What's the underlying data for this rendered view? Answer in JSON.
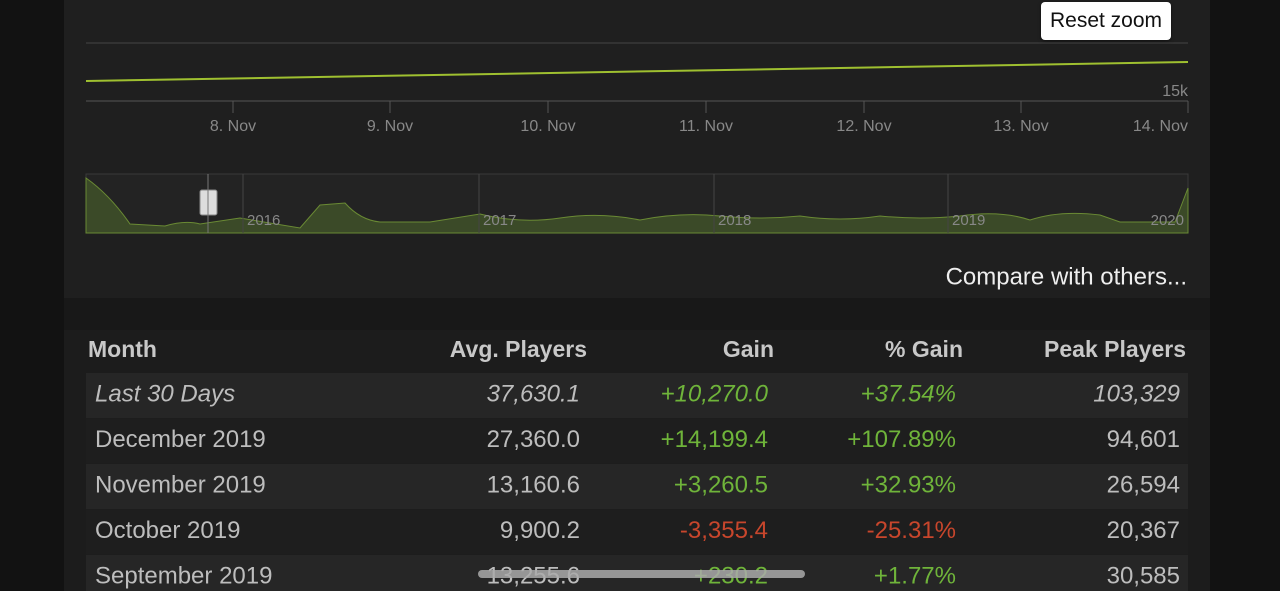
{
  "reset_button": "Reset zoom",
  "chart": {
    "y_labels": [
      "15k"
    ],
    "x_labels": [
      "8. Nov",
      "9. Nov",
      "10. Nov",
      "11. Nov",
      "12. Nov",
      "13. Nov",
      "14. Nov"
    ],
    "navigator_labels": [
      "2016",
      "2017",
      "2018",
      "2019",
      "2020"
    ]
  },
  "compare_link": "Compare with others...",
  "table": {
    "headers": [
      "Month",
      "Avg. Players",
      "Gain",
      "% Gain",
      "Peak Players"
    ],
    "rows": [
      [
        "Last 30 Days",
        "37,630.1",
        "+10,270.0",
        "+37.54%",
        "103,329"
      ],
      [
        "December 2019",
        "27,360.0",
        "+14,199.4",
        "+107.89%",
        "94,601"
      ],
      [
        "November 2019",
        "13,160.6",
        "+3,260.5",
        "+32.93%",
        "26,594"
      ],
      [
        "October 2019",
        "9,900.2",
        "-3,355.4",
        "-25.31%",
        "20,367"
      ],
      [
        "September 2019",
        "13,255.6",
        "+230.2",
        "+1.77%",
        "30,585"
      ]
    ]
  }
}
